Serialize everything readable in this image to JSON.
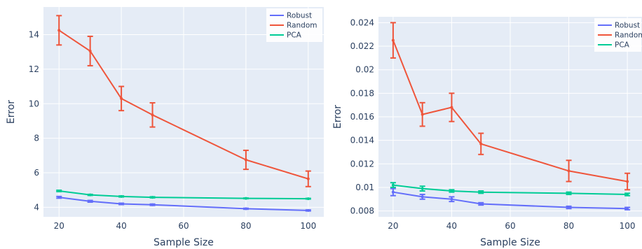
{
  "chart_data": [
    {
      "type": "line",
      "xlabel": "Sample Size",
      "ylabel": "Error",
      "xlim": [
        15,
        105
      ],
      "ylim": [
        3.45,
        15.6
      ],
      "x_ticks": [
        20,
        40,
        60,
        80,
        100
      ],
      "y_ticks": [
        4,
        6,
        8,
        10,
        12,
        14
      ],
      "y_tick_labels": [
        "4",
        "6",
        "8",
        "10",
        "12",
        "14"
      ],
      "grid": true,
      "legend_position": "top-right",
      "x": [
        20,
        30,
        40,
        50,
        80,
        100
      ],
      "series": [
        {
          "name": "Robust",
          "color": "#636efa",
          "values": [
            4.58,
            4.35,
            4.2,
            4.15,
            3.92,
            3.82
          ],
          "err": [
            0.05,
            0.05,
            0.04,
            0.04,
            0.03,
            0.03
          ]
        },
        {
          "name": "Random",
          "color": "#ef553b",
          "values": [
            14.25,
            13.05,
            10.3,
            9.35,
            6.75,
            5.65
          ],
          "err": [
            0.85,
            0.85,
            0.7,
            0.7,
            0.55,
            0.45
          ]
        },
        {
          "name": "PCA",
          "color": "#00cc96",
          "values": [
            4.95,
            4.72,
            4.63,
            4.58,
            4.52,
            4.5
          ],
          "err": [
            0.04,
            0.03,
            0.03,
            0.03,
            0.02,
            0.02
          ]
        }
      ]
    },
    {
      "type": "line",
      "xlabel": "Sample Size",
      "ylabel": "Error",
      "xlim": [
        15,
        105
      ],
      "ylim": [
        0.0075,
        0.0245
      ],
      "x_ticks": [
        20,
        40,
        60,
        80,
        100
      ],
      "y_ticks": [
        0.008,
        0.01,
        0.012,
        0.014,
        0.016,
        0.018,
        0.02,
        0.022,
        0.024
      ],
      "y_tick_labels": [
        "0.008",
        "0.01",
        "0.012",
        "0.014",
        "0.016",
        "0.018",
        "0.02",
        "0.022",
        "0.024"
      ],
      "grid": true,
      "legend_position": "top-right",
      "x": [
        20,
        30,
        40,
        50,
        80,
        100
      ],
      "series": [
        {
          "name": "Robust",
          "color": "#636efa",
          "values": [
            0.0096,
            0.0092,
            0.009,
            0.0086,
            0.0083,
            0.0082
          ],
          "err": [
            0.0003,
            0.0002,
            0.0002,
            0.0001,
            0.0001,
            0.0001
          ]
        },
        {
          "name": "Random",
          "color": "#ef553b",
          "values": [
            0.0225,
            0.0162,
            0.0168,
            0.0137,
            0.0114,
            0.0105
          ],
          "err": [
            0.0015,
            0.001,
            0.0012,
            0.0009,
            0.0009,
            0.0007
          ]
        },
        {
          "name": "PCA",
          "color": "#00cc96",
          "values": [
            0.0102,
            0.0099,
            0.0097,
            0.0096,
            0.0095,
            0.0094
          ],
          "err": [
            0.0002,
            0.0002,
            0.0001,
            0.0001,
            0.0001,
            0.0001
          ]
        }
      ]
    }
  ]
}
